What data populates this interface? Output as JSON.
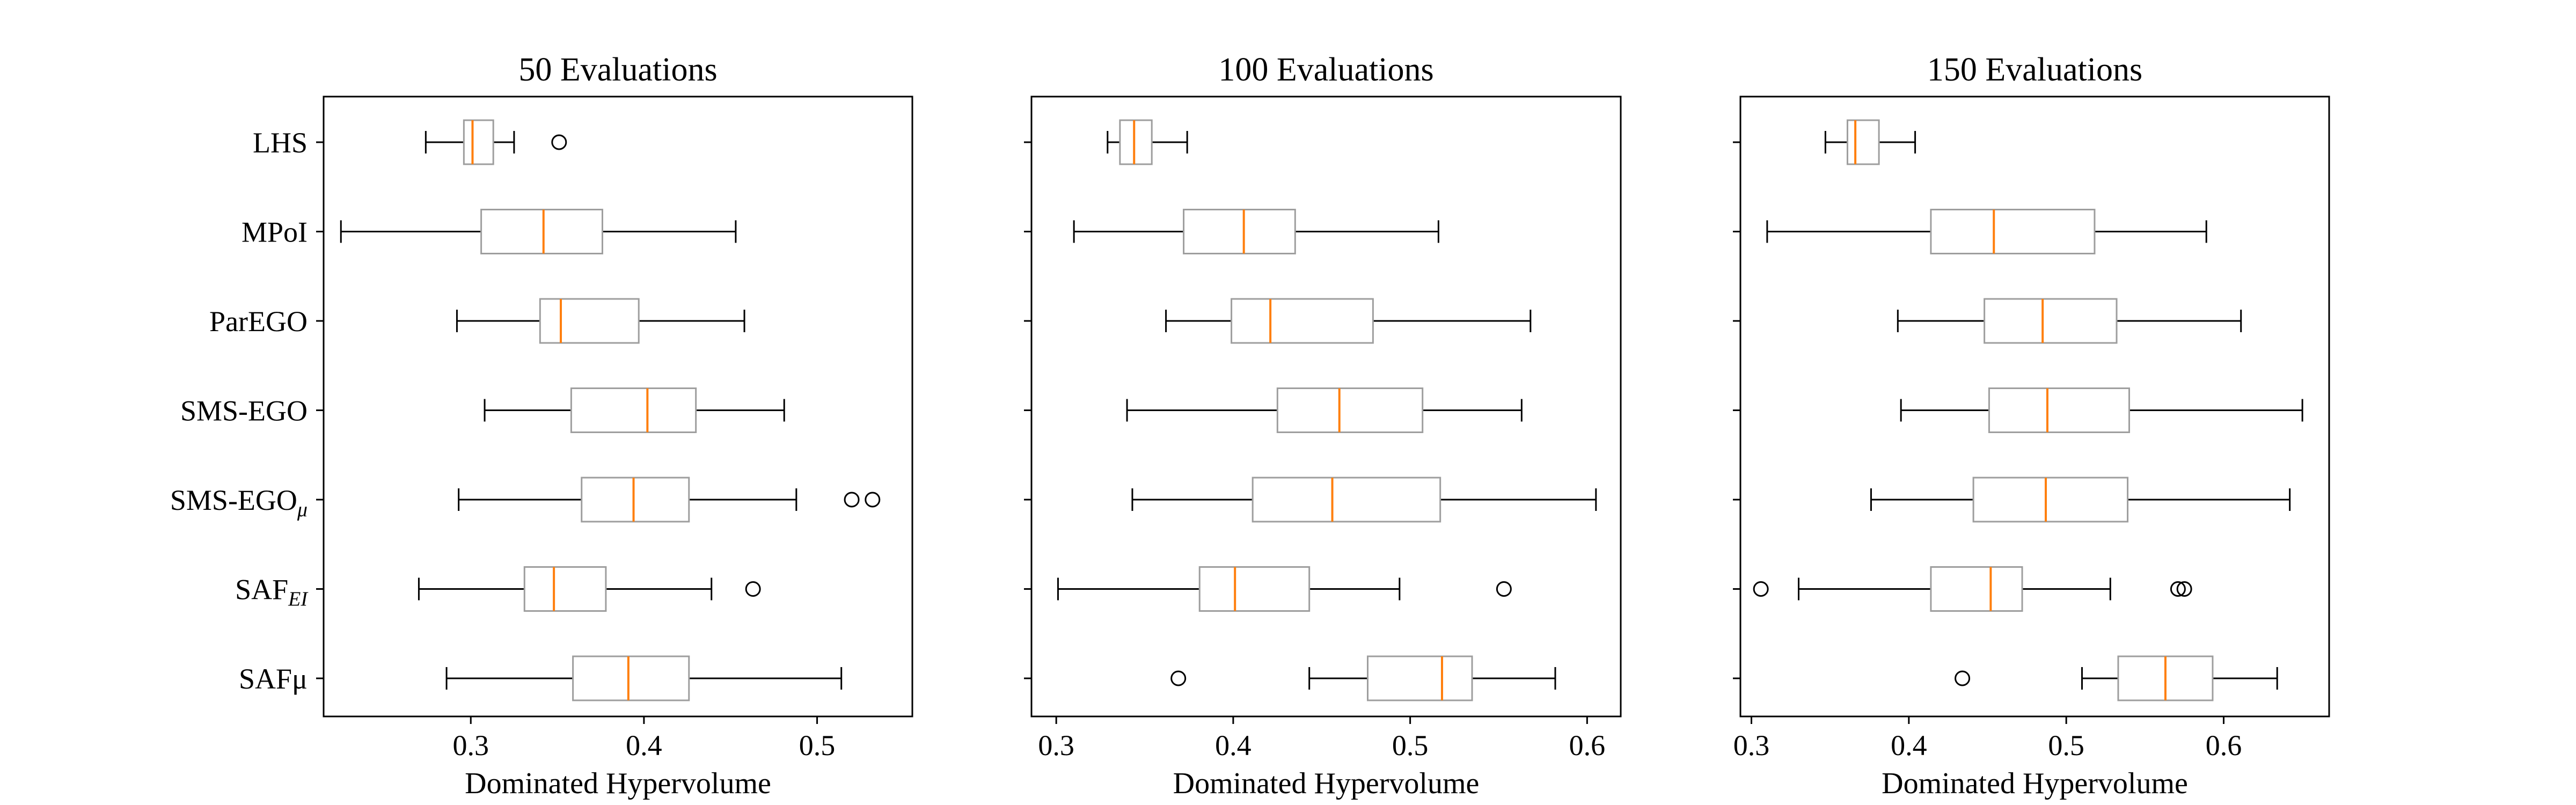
{
  "chart_data": [
    {
      "type": "box",
      "title": "50 Evaluations",
      "xlabel": "Dominated Hypervolume",
      "xlim": [
        0.215,
        0.555
      ],
      "xticks": [
        {
          "value": 0.3,
          "label": "0.3"
        },
        {
          "value": 0.4,
          "label": "0.4"
        },
        {
          "value": 0.5,
          "label": "0.5"
        }
      ],
      "grid": false,
      "categories": [
        {
          "name": "LHS",
          "text": "LHS",
          "sub": ""
        },
        {
          "name": "MPoI",
          "text": "MPoI",
          "sub": ""
        },
        {
          "name": "ParEGO",
          "text": "ParEGO",
          "sub": ""
        },
        {
          "name": "SMS-EGO",
          "text": "SMS-EGO",
          "sub": ""
        },
        {
          "name": "SMS-EGO_mu",
          "text": "SMS-EGO",
          "sub": "μ"
        },
        {
          "name": "SAF_EI",
          "text": "SAF",
          "sub": "EI"
        },
        {
          "name": "SAF_mu",
          "text": "SAFμ",
          "sub": ""
        }
      ],
      "boxes": [
        {
          "whislo": 0.274,
          "q1": 0.296,
          "med": 0.301,
          "q3": 0.313,
          "whishi": 0.325,
          "fliers": [
            0.351
          ]
        },
        {
          "whislo": 0.225,
          "q1": 0.306,
          "med": 0.342,
          "q3": 0.376,
          "whishi": 0.453,
          "fliers": []
        },
        {
          "whislo": 0.292,
          "q1": 0.34,
          "med": 0.352,
          "q3": 0.397,
          "whishi": 0.458,
          "fliers": []
        },
        {
          "whislo": 0.308,
          "q1": 0.358,
          "med": 0.402,
          "q3": 0.43,
          "whishi": 0.481,
          "fliers": []
        },
        {
          "whislo": 0.293,
          "q1": 0.364,
          "med": 0.394,
          "q3": 0.426,
          "whishi": 0.488,
          "fliers": [
            0.52,
            0.532
          ]
        },
        {
          "whislo": 0.27,
          "q1": 0.331,
          "med": 0.348,
          "q3": 0.378,
          "whishi": 0.439,
          "fliers": [
            0.463
          ]
        },
        {
          "whislo": 0.286,
          "q1": 0.359,
          "med": 0.391,
          "q3": 0.426,
          "whishi": 0.514,
          "fliers": []
        }
      ]
    },
    {
      "type": "box",
      "title": "100 Evaluations",
      "xlabel": "Dominated Hypervolume",
      "xlim": [
        0.286,
        0.619
      ],
      "xticks": [
        {
          "value": 0.3,
          "label": "0.3"
        },
        {
          "value": 0.4,
          "label": "0.4"
        },
        {
          "value": 0.5,
          "label": "0.5"
        },
        {
          "value": 0.6,
          "label": "0.6"
        }
      ],
      "grid": false,
      "boxes": [
        {
          "whislo": 0.329,
          "q1": 0.336,
          "med": 0.344,
          "q3": 0.354,
          "whishi": 0.374,
          "fliers": []
        },
        {
          "whislo": 0.31,
          "q1": 0.372,
          "med": 0.406,
          "q3": 0.435,
          "whishi": 0.516,
          "fliers": []
        },
        {
          "whislo": 0.362,
          "q1": 0.399,
          "med": 0.421,
          "q3": 0.479,
          "whishi": 0.568,
          "fliers": []
        },
        {
          "whislo": 0.34,
          "q1": 0.425,
          "med": 0.46,
          "q3": 0.507,
          "whishi": 0.563,
          "fliers": []
        },
        {
          "whislo": 0.343,
          "q1": 0.411,
          "med": 0.456,
          "q3": 0.517,
          "whishi": 0.605,
          "fliers": []
        },
        {
          "whislo": 0.301,
          "q1": 0.381,
          "med": 0.401,
          "q3": 0.443,
          "whishi": 0.494,
          "fliers": [
            0.553
          ]
        },
        {
          "whislo": 0.443,
          "q1": 0.476,
          "med": 0.518,
          "q3": 0.535,
          "whishi": 0.582,
          "fliers": [
            0.369
          ]
        }
      ]
    },
    {
      "type": "box",
      "title": "150 Evaluations",
      "xlabel": "Dominated Hypervolume",
      "xlim": [
        0.293,
        0.667
      ],
      "xticks": [
        {
          "value": 0.3,
          "label": "0.3"
        },
        {
          "value": 0.4,
          "label": "0.4"
        },
        {
          "value": 0.5,
          "label": "0.5"
        },
        {
          "value": 0.6,
          "label": "0.6"
        }
      ],
      "grid": false,
      "boxes": [
        {
          "whislo": 0.347,
          "q1": 0.361,
          "med": 0.366,
          "q3": 0.381,
          "whishi": 0.404,
          "fliers": []
        },
        {
          "whislo": 0.31,
          "q1": 0.414,
          "med": 0.454,
          "q3": 0.518,
          "whishi": 0.589,
          "fliers": []
        },
        {
          "whislo": 0.393,
          "q1": 0.448,
          "med": 0.485,
          "q3": 0.532,
          "whishi": 0.611,
          "fliers": []
        },
        {
          "whislo": 0.395,
          "q1": 0.451,
          "med": 0.488,
          "q3": 0.54,
          "whishi": 0.65,
          "fliers": []
        },
        {
          "whislo": 0.376,
          "q1": 0.441,
          "med": 0.487,
          "q3": 0.539,
          "whishi": 0.642,
          "fliers": []
        },
        {
          "whislo": 0.33,
          "q1": 0.414,
          "med": 0.452,
          "q3": 0.472,
          "whishi": 0.528,
          "fliers": [
            0.306,
            0.571,
            0.575
          ]
        },
        {
          "whislo": 0.51,
          "q1": 0.533,
          "med": 0.563,
          "q3": 0.593,
          "whishi": 0.634,
          "fliers": [
            0.434
          ]
        }
      ]
    }
  ],
  "colors": {
    "box": "#9e9e9e",
    "median": "#ff7f0e",
    "whisker": "#000000",
    "axes": "#000000"
  }
}
